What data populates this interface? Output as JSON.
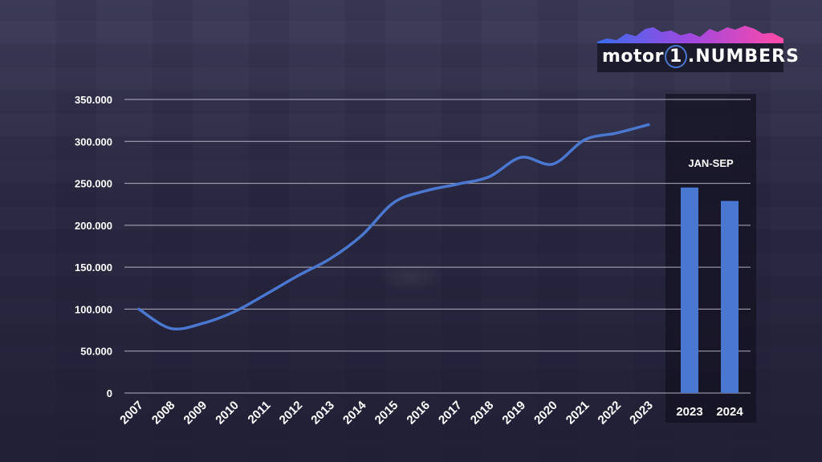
{
  "logo": {
    "brand": "motor",
    "mark": "1",
    "suffix": ".NUMBERS"
  },
  "colors": {
    "line": "#4a78d0",
    "bar": "#4a78d0",
    "grid": "#c8c8d8",
    "text": "#ffffff"
  },
  "chart_data": [
    {
      "type": "line",
      "x": [
        "2007",
        "2008",
        "2009",
        "2010",
        "2011",
        "2012",
        "2013",
        "2014",
        "2015",
        "2016",
        "2017",
        "2018",
        "2019",
        "2020",
        "2021",
        "2022",
        "2023"
      ],
      "values": [
        100000,
        77000,
        83000,
        97000,
        118000,
        140000,
        160000,
        188000,
        227000,
        241000,
        249000,
        258000,
        281000,
        273000,
        302000,
        310000,
        320000
      ],
      "ylim": [
        0,
        350000
      ],
      "yticks": [
        "0",
        "50.000",
        "100.000",
        "150.000",
        "200.000",
        "250.000",
        "300.000",
        "350.000"
      ],
      "grid": true
    },
    {
      "type": "bar",
      "title": "JAN-SEP",
      "categories": [
        "2023",
        "2024"
      ],
      "values": [
        245000,
        229000
      ],
      "ylim": [
        0,
        350000
      ]
    }
  ]
}
